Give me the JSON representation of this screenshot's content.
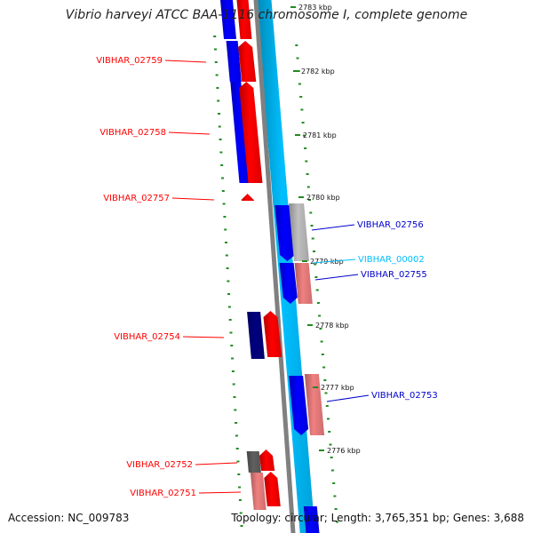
{
  "title": "Vibrio harveyi ATCC BAA-1116 chromosome I, complete genome",
  "accession": "Accession: NC_009783",
  "summary": "Topology: circular; Length: 3,765,351 bp; Genes: 3,688",
  "colors": {
    "forward_gene": "#ff0000",
    "forward_gene_light": "#f08080",
    "reverse_gene": "#0000ff",
    "reverse_gene_dark": "#000080",
    "gray_gene": "#c0c0c0",
    "dark_gray_gene": "#606060",
    "backbone": "#808080",
    "ruler": "#00bfff",
    "tick": "#228b22",
    "label_red": "#ff0000",
    "label_blue": "#0000cd",
    "label_cyan": "#00bfff"
  },
  "scale_ticks": [
    {
      "label": "2783 kbp"
    },
    {
      "label": "2782 kbp"
    },
    {
      "label": "2781 kbp"
    },
    {
      "label": "2780 kbp"
    },
    {
      "label": "2779 kbp"
    },
    {
      "label": "2778 kbp"
    },
    {
      "label": "2777 kbp"
    },
    {
      "label": "2776 kbp"
    }
  ],
  "gene_labels": [
    {
      "text": "VIBHAR_02759",
      "strand": "forward"
    },
    {
      "text": "VIBHAR_02758",
      "strand": "forward"
    },
    {
      "text": "VIBHAR_02757",
      "strand": "forward"
    },
    {
      "text": "VIBHAR_02756",
      "strand": "reverse"
    },
    {
      "text": "VIBHAR_00002",
      "strand": "rna"
    },
    {
      "text": "VIBHAR_02755",
      "strand": "reverse"
    },
    {
      "text": "VIBHAR_02754",
      "strand": "forward"
    },
    {
      "text": "VIBHAR_02753",
      "strand": "reverse"
    },
    {
      "text": "VIBHAR_02752",
      "strand": "forward"
    },
    {
      "text": "VIBHAR_02751",
      "strand": "forward"
    }
  ]
}
